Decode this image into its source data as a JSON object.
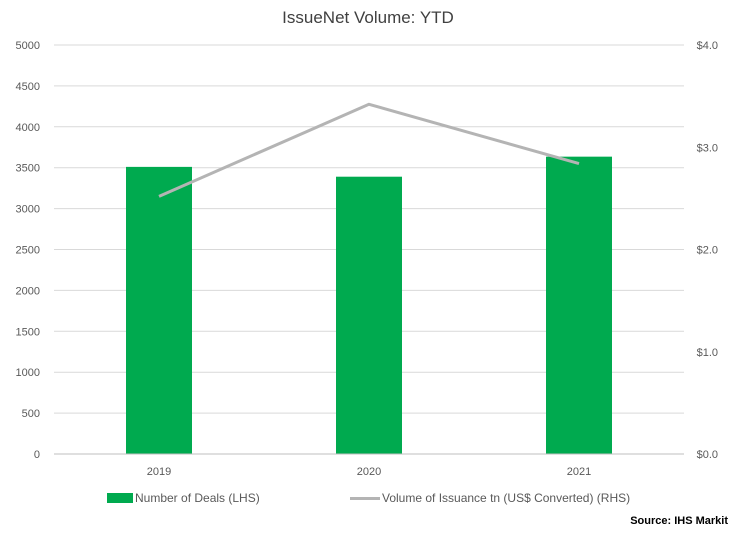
{
  "chart_data": {
    "type": "bar",
    "title": "IssueNet Volume: YTD",
    "categories": [
      "2019",
      "2020",
      "2021"
    ],
    "series": [
      {
        "name": "Number of Deals (LHS)",
        "kind": "bar",
        "axis": "left",
        "values": [
          3510,
          3390,
          3635
        ],
        "color": "#00AA4F"
      },
      {
        "name": "Volume of Issuance tn (US$ Converted) (RHS)",
        "kind": "line",
        "axis": "right",
        "values": [
          2.52,
          3.42,
          2.84
        ],
        "color": "#B4B4B4"
      }
    ],
    "left_axis": {
      "ylim": [
        0,
        5000
      ],
      "ticks": [
        0,
        500,
        1000,
        1500,
        2000,
        2500,
        3000,
        3500,
        4000,
        4500,
        5000
      ],
      "tick_labels": [
        "0",
        "500",
        "1000",
        "1500",
        "2000",
        "2500",
        "3000",
        "3500",
        "4000",
        "4500",
        "5000"
      ]
    },
    "right_axis": {
      "ylim": [
        0,
        4
      ],
      "ticks": [
        0,
        1,
        2,
        3,
        4
      ],
      "tick_labels": [
        "$0.0",
        "$1.0",
        "$2.0",
        "$3.0",
        "$4.0"
      ]
    },
    "grid": true,
    "legend_position": "bottom",
    "gridline_color": "#D9D9D9",
    "axis_color": "#BFBFBF"
  },
  "source_label": "Source: IHS Markit"
}
